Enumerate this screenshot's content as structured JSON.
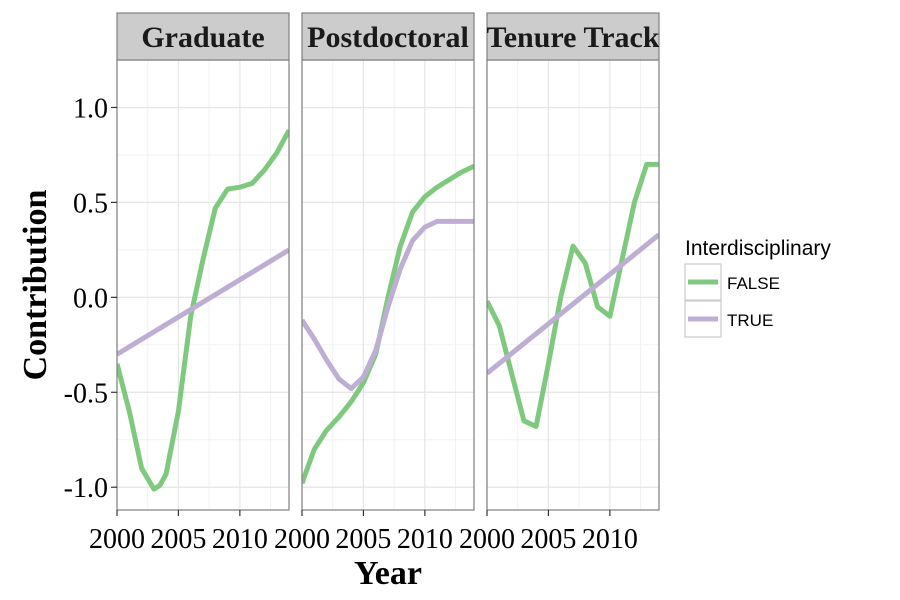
{
  "chart_data": {
    "type": "line",
    "xlabel": "Year",
    "ylabel": "Contribution",
    "xlim": [
      2000,
      2014
    ],
    "ylim": [
      -1.12,
      1.25
    ],
    "x_ticks": [
      2000,
      2005,
      2010
    ],
    "x_tick_labels": [
      "2000",
      "2005",
      "2010"
    ],
    "y_ticks": [
      1.0,
      0.5,
      0.0,
      -0.5,
      -1.0
    ],
    "y_tick_labels": [
      "1.0",
      "0.5",
      "0.0",
      "-0.5",
      "-1.0"
    ],
    "legend": {
      "title": "Interdisciplinary",
      "placement": "right",
      "entries": [
        {
          "label": "FALSE",
          "color": "#7fc97f"
        },
        {
          "label": "TRUE",
          "color": "#beaed4"
        }
      ]
    },
    "panels": [
      {
        "title": "Graduate",
        "series": [
          {
            "name": "FALSE",
            "color": "#7fc97f",
            "x": [
              2000,
              2001,
              2002,
              2003,
              2003.5,
              2004,
              2005,
              2006,
              2007,
              2008,
              2009,
              2010,
              2011,
              2012,
              2013,
              2014
            ],
            "y": [
              -0.35,
              -0.6,
              -0.9,
              -1.01,
              -0.99,
              -0.93,
              -0.6,
              -0.1,
              0.2,
              0.47,
              0.57,
              0.58,
              0.6,
              0.67,
              0.76,
              0.88
            ]
          },
          {
            "name": "TRUE",
            "color": "#beaed4",
            "x": [
              2000,
              2014
            ],
            "y": [
              -0.3,
              0.25
            ]
          }
        ]
      },
      {
        "title": "Postdoctoral",
        "series": [
          {
            "name": "FALSE",
            "color": "#7fc97f",
            "x": [
              2000,
              2001,
              2002,
              2003,
              2004,
              2005,
              2006,
              2007,
              2008,
              2009,
              2010,
              2011,
              2012,
              2013,
              2014
            ],
            "y": [
              -0.98,
              -0.8,
              -0.7,
              -0.63,
              -0.55,
              -0.45,
              -0.3,
              0.0,
              0.27,
              0.45,
              0.53,
              0.58,
              0.62,
              0.66,
              0.69
            ]
          },
          {
            "name": "TRUE",
            "color": "#beaed4",
            "x": [
              2000,
              2001,
              2002,
              2003,
              2004,
              2005,
              2006,
              2007,
              2008,
              2009,
              2010,
              2011,
              2012,
              2013,
              2014
            ],
            "y": [
              -0.12,
              -0.22,
              -0.33,
              -0.43,
              -0.48,
              -0.42,
              -0.28,
              -0.05,
              0.15,
              0.3,
              0.37,
              0.4,
              0.4,
              0.4,
              0.4
            ]
          }
        ]
      },
      {
        "title": "Tenure Track",
        "series": [
          {
            "name": "FALSE",
            "color": "#7fc97f",
            "x": [
              2000,
              2001,
              2002,
              2003,
              2004,
              2005,
              2006,
              2007,
              2008,
              2009,
              2010,
              2011,
              2012,
              2013,
              2014
            ],
            "y": [
              -0.02,
              -0.15,
              -0.4,
              -0.65,
              -0.68,
              -0.35,
              0.0,
              0.27,
              0.18,
              -0.05,
              -0.1,
              0.2,
              0.5,
              0.7,
              0.7
            ]
          },
          {
            "name": "TRUE",
            "color": "#beaed4",
            "x": [
              2000,
              2014
            ],
            "y": [
              -0.4,
              0.33
            ]
          }
        ]
      }
    ]
  }
}
